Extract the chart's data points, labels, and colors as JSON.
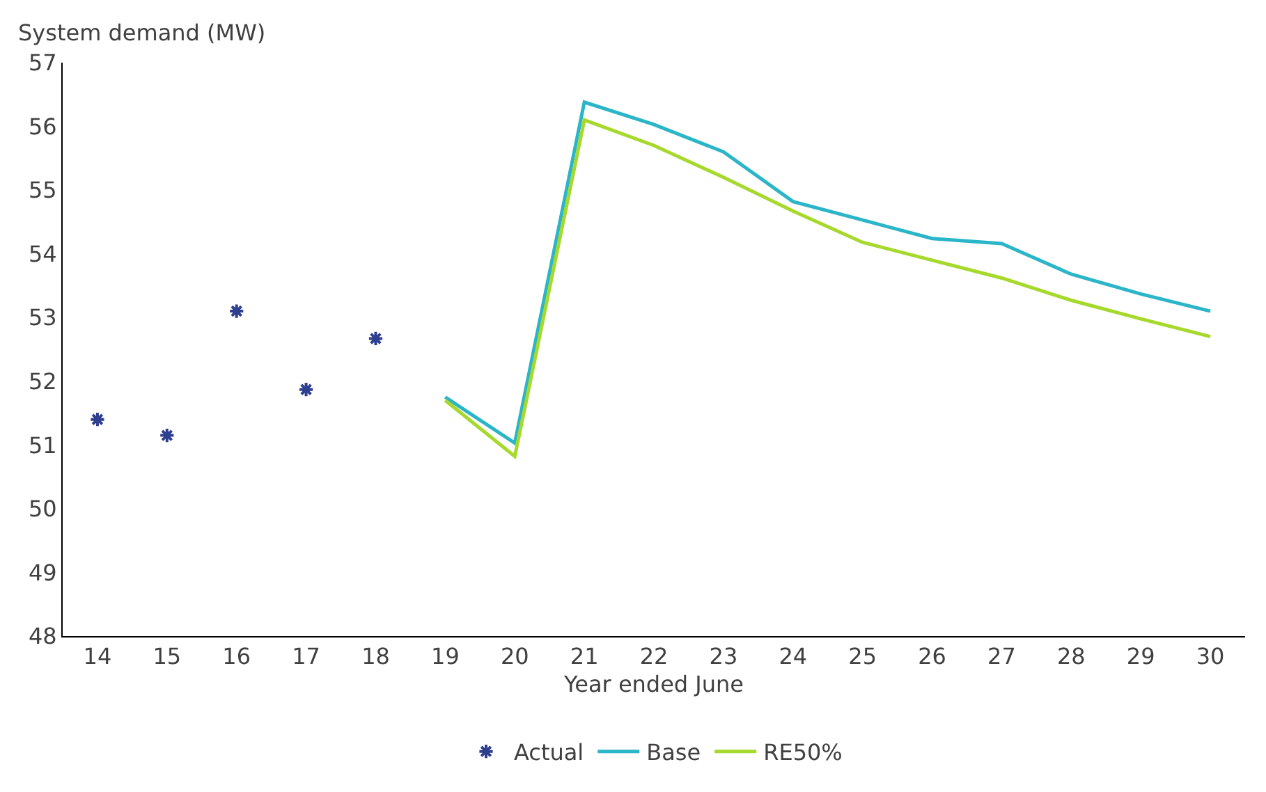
{
  "chart_data": {
    "type": "line",
    "ylabel": "System demand (MW)",
    "xlabel": "Year ended June",
    "categories": [
      "14",
      "15",
      "16",
      "17",
      "18",
      "19",
      "20",
      "21",
      "22",
      "23",
      "24",
      "25",
      "26",
      "27",
      "28",
      "29",
      "30"
    ],
    "series": [
      {
        "name": "Actual",
        "type": "scatter",
        "marker": "cross",
        "color": "#2e3f8f",
        "values": [
          51.4,
          51.15,
          53.1,
          51.87,
          52.67,
          null,
          null,
          null,
          null,
          null,
          null,
          null,
          null,
          null,
          null,
          null,
          null
        ]
      },
      {
        "name": "Base",
        "color": "#2bb5c8",
        "values": [
          null,
          null,
          null,
          null,
          null,
          51.75,
          51.03,
          56.38,
          56.03,
          55.6,
          54.82,
          54.53,
          54.24,
          54.16,
          53.68,
          53.37,
          53.1
        ]
      },
      {
        "name": "RE50%",
        "color": "#a6d92c",
        "values": [
          null,
          null,
          null,
          null,
          null,
          51.7,
          50.82,
          56.1,
          55.7,
          55.2,
          54.67,
          54.18,
          53.9,
          53.62,
          53.27,
          52.98,
          52.7
        ]
      }
    ],
    "ylim": [
      48,
      57
    ],
    "yticks": [
      48,
      49,
      50,
      51,
      52,
      53,
      54,
      55,
      56,
      57
    ],
    "legend": "bottom",
    "line_style": "solid"
  }
}
